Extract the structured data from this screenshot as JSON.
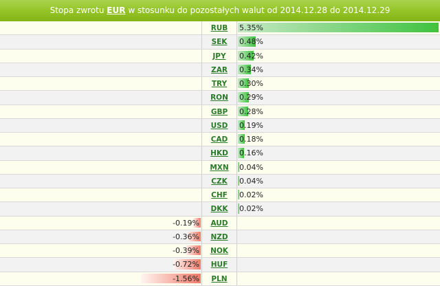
{
  "header": {
    "prefix": "Stopa zwrotu",
    "currency": "EUR",
    "middle": "w stosunku do pozostałych walut od",
    "date_from": "2014.12.28",
    "to_word": "do",
    "date_to": "2014.12.29"
  },
  "colors": {
    "header_green": "#93c324",
    "positive_bar": "#3fc23f",
    "negative_bar": "#f07a6a",
    "link_green": "#2a7a2a"
  },
  "rows": [
    {
      "code": "RUB",
      "value": "5.35%",
      "pct": 5.35
    },
    {
      "code": "SEK",
      "value": "0.48%",
      "pct": 0.48
    },
    {
      "code": "JPY",
      "value": "0.42%",
      "pct": 0.42
    },
    {
      "code": "ZAR",
      "value": "0.34%",
      "pct": 0.34
    },
    {
      "code": "TRY",
      "value": "0.30%",
      "pct": 0.3
    },
    {
      "code": "RON",
      "value": "0.29%",
      "pct": 0.29
    },
    {
      "code": "GBP",
      "value": "0.28%",
      "pct": 0.28
    },
    {
      "code": "USD",
      "value": "0.19%",
      "pct": 0.19
    },
    {
      "code": "CAD",
      "value": "0.18%",
      "pct": 0.18
    },
    {
      "code": "HKD",
      "value": "0.16%",
      "pct": 0.16
    },
    {
      "code": "MXN",
      "value": "0.04%",
      "pct": 0.04
    },
    {
      "code": "CZK",
      "value": "0.04%",
      "pct": 0.04
    },
    {
      "code": "CHF",
      "value": "0.02%",
      "pct": 0.02
    },
    {
      "code": "DKK",
      "value": "0.02%",
      "pct": 0.02
    },
    {
      "code": "AUD",
      "value": "-0.19%",
      "pct": -0.19
    },
    {
      "code": "NZD",
      "value": "-0.36%",
      "pct": -0.36
    },
    {
      "code": "NOK",
      "value": "-0.39%",
      "pct": -0.39
    },
    {
      "code": "HUF",
      "value": "-0.72%",
      "pct": -0.72
    },
    {
      "code": "PLN",
      "value": "-1.56%",
      "pct": -1.56
    }
  ]
}
